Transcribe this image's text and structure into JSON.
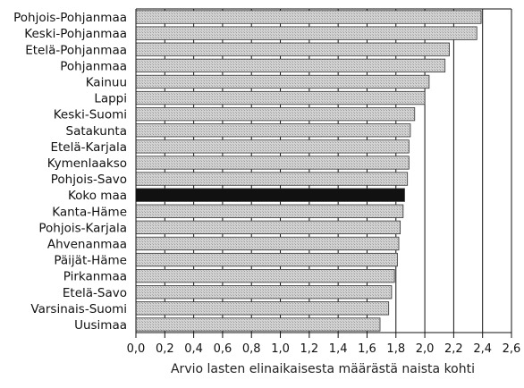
{
  "chart_data": {
    "type": "bar",
    "orientation": "horizontal",
    "categories": [
      "Pohjois-Pohjanmaa",
      "Keski-Pohjanmaa",
      "Etelä-Pohjanmaa",
      "Pohjanmaa",
      "Kainuu",
      "Lappi",
      "Keski-Suomi",
      "Satakunta",
      "Etelä-Karjala",
      "Kymenlaakso",
      "Pohjois-Savo",
      "Koko maa",
      "Kanta-Häme",
      "Pohjois-Karjala",
      "Ahvenanmaa",
      "Päijät-Häme",
      "Pirkanmaa",
      "Etelä-Savo",
      "Varsinais-Suomi",
      "Uusimaa"
    ],
    "values": [
      2.39,
      2.36,
      2.17,
      2.14,
      2.03,
      2.0,
      1.93,
      1.9,
      1.89,
      1.89,
      1.88,
      1.86,
      1.85,
      1.83,
      1.82,
      1.81,
      1.79,
      1.77,
      1.75,
      1.69
    ],
    "highlight": "Koko maa",
    "xlabel": "Arvio lasten elinaikaisesta määrästä naista kohti",
    "ylabel": "",
    "xlim": [
      0,
      2.6
    ],
    "xticks": [
      "0,0",
      "0,2",
      "0,4",
      "0,6",
      "0,8",
      "1,0",
      "1,2",
      "1,4",
      "1,6",
      "1,8",
      "2,0",
      "2,2",
      "2,4",
      "2,6"
    ],
    "grid": "vertical",
    "colors": {
      "bar": "#c8c8c8",
      "highlight": "#111111",
      "grid": "#111111"
    }
  }
}
